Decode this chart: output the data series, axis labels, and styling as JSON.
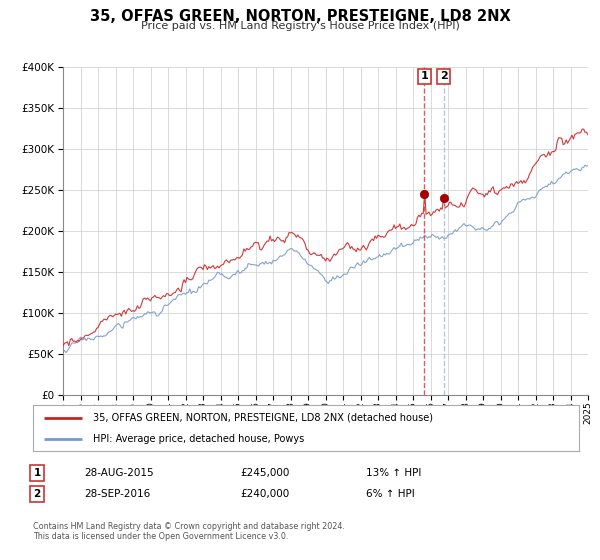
{
  "title": "35, OFFAS GREEN, NORTON, PRESTEIGNE, LD8 2NX",
  "subtitle": "Price paid vs. HM Land Registry's House Price Index (HPI)",
  "legend_line1": "35, OFFAS GREEN, NORTON, PRESTEIGNE, LD8 2NX (detached house)",
  "legend_line2": "HPI: Average price, detached house, Powys",
  "sale1_date": "28-AUG-2015",
  "sale1_price": "£245,000",
  "sale1_hpi": "13% ↑ HPI",
  "sale1_year": 2015.65,
  "sale1_value": 245000,
  "sale2_date": "28-SEP-2016",
  "sale2_price": "£240,000",
  "sale2_hpi": "6% ↑ HPI",
  "sale2_year": 2016.75,
  "sale2_value": 240000,
  "ylim": [
    0,
    400000
  ],
  "xlim_start": 1995,
  "xlim_end": 2025,
  "hpi_color": "#7799cc",
  "price_color": "#cc2222",
  "marker_color": "#aa0000",
  "vline1_color": "#cc4444",
  "vline2_color": "#aabbdd",
  "grid_color": "#cccccc",
  "background_color": "#ffffff",
  "footer": "Contains HM Land Registry data © Crown copyright and database right 2024.\nThis data is licensed under the Open Government Licence v3.0."
}
